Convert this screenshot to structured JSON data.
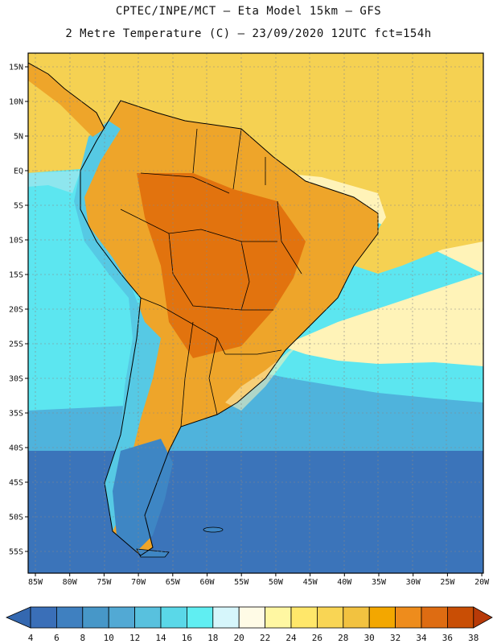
{
  "title_line1": "CPTEC/INPE/MCT –  Eta Model 15km – GFS",
  "title_line2": "2 Metre Temperature (C) – 23/09/2020 12UTC fct=154h",
  "lat_labels": [
    "15N",
    "10N",
    "5N",
    "EQ",
    "5S",
    "10S",
    "15S",
    "20S",
    "25S",
    "30S",
    "35S",
    "40S",
    "45S",
    "50S",
    "55S"
  ],
  "lon_labels": [
    "85W",
    "80W",
    "75W",
    "70W",
    "65W",
    "60W",
    "55W",
    "50W",
    "45W",
    "40W",
    "35W",
    "30W",
    "25W",
    "20W"
  ],
  "colorbar": {
    "labels": [
      "4",
      "6",
      "8",
      "10",
      "12",
      "14",
      "16",
      "18",
      "20",
      "22",
      "24",
      "26",
      "28",
      "30",
      "32",
      "34",
      "36",
      "38"
    ],
    "colors": [
      "#3a6fb8",
      "#3f80c0",
      "#4797c8",
      "#52a9d4",
      "#58c1de",
      "#5ad8e8",
      "#60eef2",
      "#d6f6fb",
      "#fffbe6",
      "#fff7a2",
      "#ffe76a",
      "#f9d554",
      "#f2c240",
      "#f3a700",
      "#ee8c1c",
      "#de6c12",
      "#c94e05"
    ]
  },
  "colors": {
    "ocean_warm": "#f5d152",
    "ocean_light": "#fff3b8",
    "ocean_mid": "#5ce6f0",
    "ocean_cool": "#4fb3dc",
    "ocean_cold": "#3b74ba",
    "land_hot": "#e2730e",
    "land_warm": "#eea52a",
    "andes": "#56c9e4",
    "patagonia": "#3e86c4"
  }
}
